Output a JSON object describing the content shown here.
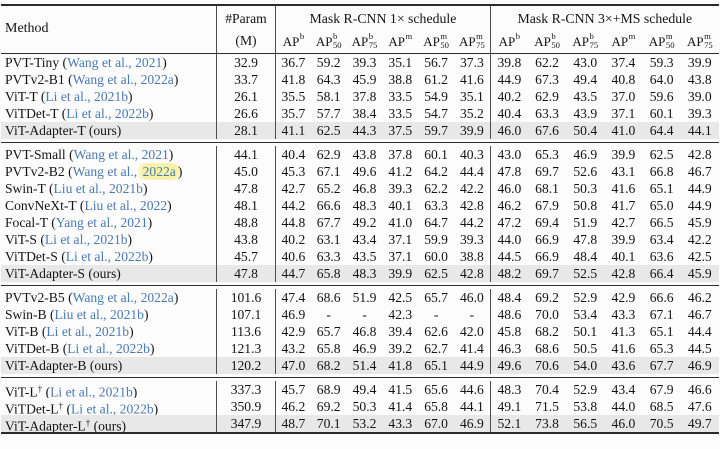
{
  "header": {
    "method_label": "Method",
    "param_line1": "#Param",
    "param_line2": "(M)",
    "group1_title": "Mask R-CNN 1× schedule",
    "group2_title": "Mask R-CNN 3×+MS schedule",
    "ap_columns": [
      {
        "base": "AP",
        "sup": "b",
        "sub": ""
      },
      {
        "base": "AP",
        "sup": "b",
        "sub": "50"
      },
      {
        "base": "AP",
        "sup": "b",
        "sub": "75"
      },
      {
        "base": "AP",
        "sup": "m",
        "sub": ""
      },
      {
        "base": "AP",
        "sup": "m",
        "sub": "50"
      },
      {
        "base": "AP",
        "sup": "m",
        "sub": "75"
      }
    ]
  },
  "colors": {
    "citation_blue": "#4a7ab5",
    "row_highlight_gray": "#e8e8e8",
    "annotation_yellow": "#f7f1a6"
  },
  "blocks": [
    {
      "rows": [
        {
          "method_parts": [
            {
              "t": "PVT-Tiny",
              "s": "plain"
            },
            {
              "t": " (",
              "s": "plain"
            },
            {
              "t": "Wang et al., 2021",
              "s": "cite"
            },
            {
              "t": ")",
              "s": "plain"
            }
          ],
          "param": "32.9",
          "s1": [
            "36.7",
            "59.2",
            "39.3",
            "35.1",
            "56.7",
            "37.3"
          ],
          "s3": [
            "39.8",
            "62.2",
            "43.0",
            "37.4",
            "59.3",
            "39.9"
          ],
          "highlight": false
        },
        {
          "method_parts": [
            {
              "t": "PVTv2-B1",
              "s": "plain"
            },
            {
              "t": " (",
              "s": "plain"
            },
            {
              "t": "Wang et al., 2022a",
              "s": "cite"
            },
            {
              "t": ")",
              "s": "plain"
            }
          ],
          "param": "33.7",
          "s1": [
            "41.8",
            "64.3",
            "45.9",
            "38.8",
            "61.2",
            "41.6"
          ],
          "s3": [
            "44.9",
            "67.3",
            "49.4",
            "40.8",
            "64.0",
            "43.8"
          ],
          "highlight": false
        },
        {
          "method_parts": [
            {
              "t": "ViT-T",
              "s": "plain"
            },
            {
              "t": " (",
              "s": "plain"
            },
            {
              "t": "Li et al., 2021b",
              "s": "cite"
            },
            {
              "t": ")",
              "s": "plain"
            }
          ],
          "param": "26.1",
          "s1": [
            "35.5",
            "58.1",
            "37.8",
            "33.5",
            "54.9",
            "35.1"
          ],
          "s3": [
            "40.2",
            "62.9",
            "43.5",
            "37.0",
            "59.6",
            "39.0"
          ],
          "highlight": false
        },
        {
          "method_parts": [
            {
              "t": "ViTDet-T",
              "s": "plain"
            },
            {
              "t": " (",
              "s": "plain"
            },
            {
              "t": "Li et al., 2022b",
              "s": "cite"
            },
            {
              "t": ")",
              "s": "plain"
            }
          ],
          "param": "26.6",
          "s1": [
            "35.7",
            "57.7",
            "38.4",
            "33.5",
            "54.7",
            "35.2"
          ],
          "s3": [
            "40.4",
            "63.3",
            "43.9",
            "37.1",
            "60.1",
            "39.3"
          ],
          "highlight": false
        },
        {
          "method_parts": [
            {
              "t": "ViT-Adapter-T (ours)",
              "s": "plain"
            }
          ],
          "param": "28.1",
          "s1": [
            "41.1",
            "62.5",
            "44.3",
            "37.5",
            "59.7",
            "39.9"
          ],
          "s3": [
            "46.0",
            "67.6",
            "50.4",
            "41.0",
            "64.4",
            "44.1"
          ],
          "highlight": true
        }
      ]
    },
    {
      "rows": [
        {
          "method_parts": [
            {
              "t": "PVT-Small",
              "s": "plain"
            },
            {
              "t": " (",
              "s": "plain"
            },
            {
              "t": "Wang et al., 2021",
              "s": "cite"
            },
            {
              "t": ")",
              "s": "plain"
            }
          ],
          "param": "44.1",
          "s1": [
            "40.4",
            "62.9",
            "43.8",
            "37.8",
            "60.1",
            "40.3"
          ],
          "s3": [
            "43.0",
            "65.3",
            "46.9",
            "39.9",
            "62.5",
            "42.8"
          ],
          "highlight": false
        },
        {
          "method_parts": [
            {
              "t": "PVTv2-B2",
              "s": "plain"
            },
            {
              "t": " (",
              "s": "plain"
            },
            {
              "t": "Wang et al., ",
              "s": "cite"
            },
            {
              "t": "2022a",
              "s": "cite-hl"
            },
            {
              "t": ")",
              "s": "plain"
            }
          ],
          "param": "45.0",
          "s1": [
            "45.3",
            "67.1",
            "49.6",
            "41.2",
            "64.2",
            "44.4"
          ],
          "s3": [
            "47.8",
            "69.7",
            "52.6",
            "43.1",
            "66.8",
            "46.7"
          ],
          "highlight": false
        },
        {
          "method_parts": [
            {
              "t": "Swin-T",
              "s": "plain"
            },
            {
              "t": " (",
              "s": "plain"
            },
            {
              "t": "Liu et al., 2021b",
              "s": "cite"
            },
            {
              "t": ")",
              "s": "plain"
            }
          ],
          "param": "47.8",
          "s1": [
            "42.7",
            "65.2",
            "46.8",
            "39.3",
            "62.2",
            "42.2"
          ],
          "s3": [
            "46.0",
            "68.1",
            "50.3",
            "41.6",
            "65.1",
            "44.9"
          ],
          "highlight": false
        },
        {
          "method_parts": [
            {
              "t": "ConvNeXt-T",
              "s": "plain"
            },
            {
              "t": " (",
              "s": "plain"
            },
            {
              "t": "Liu et al., 2022",
              "s": "cite"
            },
            {
              "t": ")",
              "s": "plain"
            }
          ],
          "param": "48.1",
          "s1": [
            "44.2",
            "66.6",
            "48.3",
            "40.1",
            "63.3",
            "42.8"
          ],
          "s3": [
            "46.2",
            "67.9",
            "50.8",
            "41.7",
            "65.0",
            "44.9"
          ],
          "highlight": false
        },
        {
          "method_parts": [
            {
              "t": "Focal-T",
              "s": "plain"
            },
            {
              "t": " (",
              "s": "plain"
            },
            {
              "t": "Yang et al., 2021",
              "s": "cite"
            },
            {
              "t": ")",
              "s": "plain"
            }
          ],
          "param": "48.8",
          "s1": [
            "44.8",
            "67.7",
            "49.2",
            "41.0",
            "64.7",
            "44.2"
          ],
          "s3": [
            "47.2",
            "69.4",
            "51.9",
            "42.7",
            "66.5",
            "45.9"
          ],
          "highlight": false
        },
        {
          "method_parts": [
            {
              "t": "ViT-S",
              "s": "plain"
            },
            {
              "t": " (",
              "s": "plain"
            },
            {
              "t": "Li et al., 2021b",
              "s": "cite"
            },
            {
              "t": ")",
              "s": "plain"
            }
          ],
          "param": "43.8",
          "s1": [
            "40.2",
            "63.1",
            "43.4",
            "37.1",
            "59.9",
            "39.3"
          ],
          "s3": [
            "44.0",
            "66.9",
            "47.8",
            "39.9",
            "63.4",
            "42.2"
          ],
          "highlight": false
        },
        {
          "method_parts": [
            {
              "t": "ViTDet-S",
              "s": "plain"
            },
            {
              "t": " (",
              "s": "plain"
            },
            {
              "t": "Li et al., 2022b",
              "s": "cite"
            },
            {
              "t": ")",
              "s": "plain"
            }
          ],
          "param": "45.7",
          "s1": [
            "40.6",
            "63.3",
            "43.5",
            "37.1",
            "60.0",
            "38.8"
          ],
          "s3": [
            "44.5",
            "66.9",
            "48.4",
            "40.1",
            "63.6",
            "42.5"
          ],
          "highlight": false
        },
        {
          "method_parts": [
            {
              "t": "ViT-Adapter-S (ours)",
              "s": "plain"
            }
          ],
          "param": "47.8",
          "s1": [
            "44.7",
            "65.8",
            "48.3",
            "39.9",
            "62.5",
            "42.8"
          ],
          "s3": [
            "48.2",
            "69.7",
            "52.5",
            "42.8",
            "66.4",
            "45.9"
          ],
          "highlight": true
        }
      ]
    },
    {
      "rows": [
        {
          "method_parts": [
            {
              "t": "PVTv2-B5",
              "s": "plain"
            },
            {
              "t": " (",
              "s": "plain"
            },
            {
              "t": "Wang et al., 2022a",
              "s": "cite"
            },
            {
              "t": ")",
              "s": "plain"
            }
          ],
          "param": "101.6",
          "s1": [
            "47.4",
            "68.6",
            "51.9",
            "42.5",
            "65.7",
            "46.0"
          ],
          "s3": [
            "48.4",
            "69.2",
            "52.9",
            "42.9",
            "66.6",
            "46.2"
          ],
          "highlight": false
        },
        {
          "method_parts": [
            {
              "t": "Swin-B",
              "s": "plain"
            },
            {
              "t": " (",
              "s": "plain"
            },
            {
              "t": "Liu et al., 2021b",
              "s": "cite"
            },
            {
              "t": ")",
              "s": "plain"
            }
          ],
          "param": "107.1",
          "s1": [
            "46.9",
            "-",
            "-",
            "42.3",
            "-",
            "-"
          ],
          "s3": [
            "48.6",
            "70.0",
            "53.4",
            "43.3",
            "67.1",
            "46.7"
          ],
          "highlight": false
        },
        {
          "method_parts": [
            {
              "t": "ViT-B",
              "s": "plain"
            },
            {
              "t": " (",
              "s": "plain"
            },
            {
              "t": "Li et al., 2021b",
              "s": "cite"
            },
            {
              "t": ")",
              "s": "plain"
            }
          ],
          "param": "113.6",
          "s1": [
            "42.9",
            "65.7",
            "46.8",
            "39.4",
            "62.6",
            "42.0"
          ],
          "s3": [
            "45.8",
            "68.2",
            "50.1",
            "41.3",
            "65.1",
            "44.4"
          ],
          "highlight": false
        },
        {
          "method_parts": [
            {
              "t": "ViTDet-B",
              "s": "plain"
            },
            {
              "t": " (",
              "s": "plain"
            },
            {
              "t": "Li et al., 2022b",
              "s": "cite"
            },
            {
              "t": ")",
              "s": "plain"
            }
          ],
          "param": "121.3",
          "s1": [
            "43.2",
            "65.8",
            "46.9",
            "39.2",
            "62.7",
            "41.4"
          ],
          "s3": [
            "46.3",
            "68.6",
            "50.5",
            "41.6",
            "65.3",
            "44.5"
          ],
          "highlight": false
        },
        {
          "method_parts": [
            {
              "t": "ViT-Adapter-B (ours)",
              "s": "plain"
            }
          ],
          "param": "120.2",
          "s1": [
            "47.0",
            "68.2",
            "51.4",
            "41.8",
            "65.1",
            "44.9"
          ],
          "s3": [
            "49.6",
            "70.6",
            "54.0",
            "43.6",
            "67.7",
            "46.9"
          ],
          "highlight": true
        }
      ]
    },
    {
      "rows": [
        {
          "method_parts": [
            {
              "t": "ViT-L",
              "s": "plain"
            },
            {
              "t": "†",
              "s": "sup"
            },
            {
              "t": " (",
              "s": "plain"
            },
            {
              "t": "Li et al., 2021b",
              "s": "cite"
            },
            {
              "t": ")",
              "s": "plain"
            }
          ],
          "param": "337.3",
          "s1": [
            "45.7",
            "68.9",
            "49.4",
            "41.5",
            "65.6",
            "44.6"
          ],
          "s3": [
            "48.3",
            "70.4",
            "52.9",
            "43.4",
            "67.9",
            "46.6"
          ],
          "highlight": false
        },
        {
          "method_parts": [
            {
              "t": "ViTDet-L",
              "s": "plain"
            },
            {
              "t": "†",
              "s": "sup"
            },
            {
              "t": " (",
              "s": "plain"
            },
            {
              "t": "Li et al., 2022b",
              "s": "cite"
            },
            {
              "t": ")",
              "s": "plain"
            }
          ],
          "param": "350.9",
          "s1": [
            "46.2",
            "69.2",
            "50.3",
            "41.4",
            "65.8",
            "44.1"
          ],
          "s3": [
            "49.1",
            "71.5",
            "53.8",
            "44.0",
            "68.5",
            "47.6"
          ],
          "highlight": false
        },
        {
          "method_parts": [
            {
              "t": "ViT-Adapter-L",
              "s": "plain"
            },
            {
              "t": "†",
              "s": "sup"
            },
            {
              "t": " (ours)",
              "s": "plain"
            }
          ],
          "param": "347.9",
          "s1": [
            "48.7",
            "70.1",
            "53.2",
            "43.3",
            "67.0",
            "46.9"
          ],
          "s3": [
            "52.1",
            "73.8",
            "56.5",
            "46.0",
            "70.5",
            "49.7"
          ],
          "highlight": true
        }
      ]
    }
  ]
}
